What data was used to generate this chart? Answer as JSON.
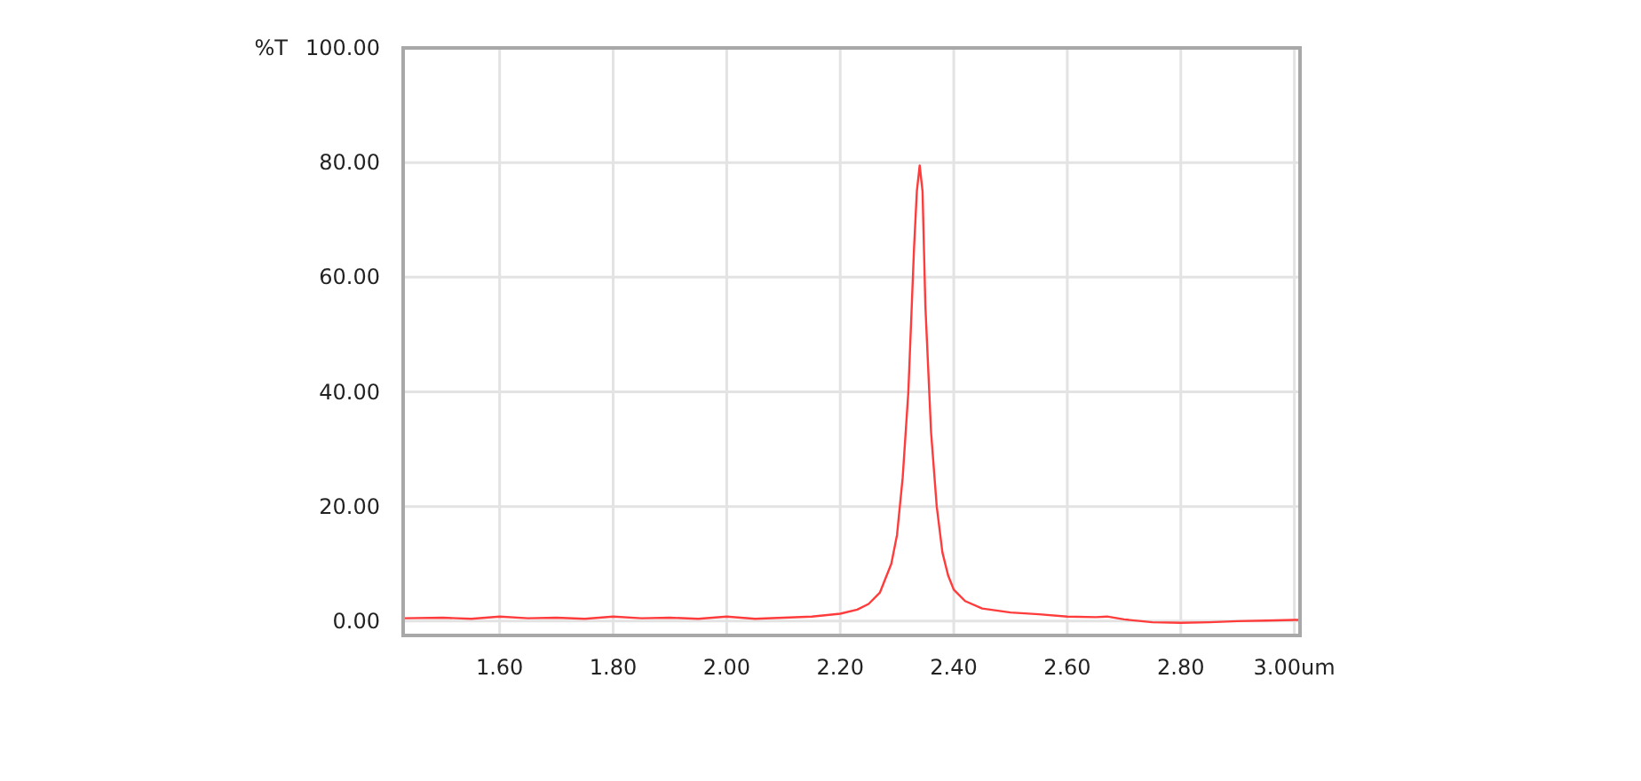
{
  "chart_data": {
    "type": "line",
    "ylabel": "%T",
    "x": [
      1.43,
      1.5,
      1.55,
      1.6,
      1.65,
      1.7,
      1.75,
      1.8,
      1.85,
      1.9,
      1.95,
      2.0,
      2.05,
      2.1,
      2.15,
      2.2,
      2.23,
      2.25,
      2.27,
      2.29,
      2.3,
      2.31,
      2.32,
      2.33,
      2.335,
      2.34,
      2.345,
      2.35,
      2.36,
      2.37,
      2.38,
      2.39,
      2.4,
      2.42,
      2.45,
      2.5,
      2.55,
      2.6,
      2.65,
      2.67,
      2.7,
      2.75,
      2.8,
      2.85,
      2.9,
      2.95,
      3.0,
      3.01
    ],
    "series": [
      {
        "color": "#ff3b3b",
        "values": [
          0.5,
          0.6,
          0.4,
          0.8,
          0.5,
          0.6,
          0.4,
          0.8,
          0.5,
          0.6,
          0.4,
          0.8,
          0.4,
          0.6,
          0.8,
          1.3,
          2,
          3,
          5,
          10,
          15,
          25,
          40,
          65,
          75,
          79.5,
          75,
          55,
          33,
          20,
          12,
          8,
          5.5,
          3.5,
          2.2,
          1.5,
          1.2,
          0.8,
          0.7,
          0.8,
          0.3,
          -0.2,
          -0.3,
          -0.2,
          0,
          0.1,
          0.2,
          0.2
        ]
      }
    ],
    "xlim": [
      1.43,
      3.01
    ],
    "ylim": [
      -2.5,
      100
    ],
    "xticks": [
      {
        "value": 1.6,
        "label": "1.60"
      },
      {
        "value": 1.8,
        "label": "1.80"
      },
      {
        "value": 2.0,
        "label": "2.00"
      },
      {
        "value": 2.2,
        "label": "2.20"
      },
      {
        "value": 2.4,
        "label": "2.40"
      },
      {
        "value": 2.6,
        "label": "2.60"
      },
      {
        "value": 2.8,
        "label": "2.80"
      },
      {
        "value": 3.0,
        "label": "3.00um"
      }
    ],
    "yticks": [
      {
        "value": 0,
        "label": "0.00"
      },
      {
        "value": 20,
        "label": "20.00"
      },
      {
        "value": 40,
        "label": "40.00"
      },
      {
        "value": 60,
        "label": "60.00"
      },
      {
        "value": 80,
        "label": "80.00"
      },
      {
        "value": 100,
        "label": "100.00"
      }
    ],
    "grid": true,
    "marker": "none",
    "line_style": "solid"
  }
}
